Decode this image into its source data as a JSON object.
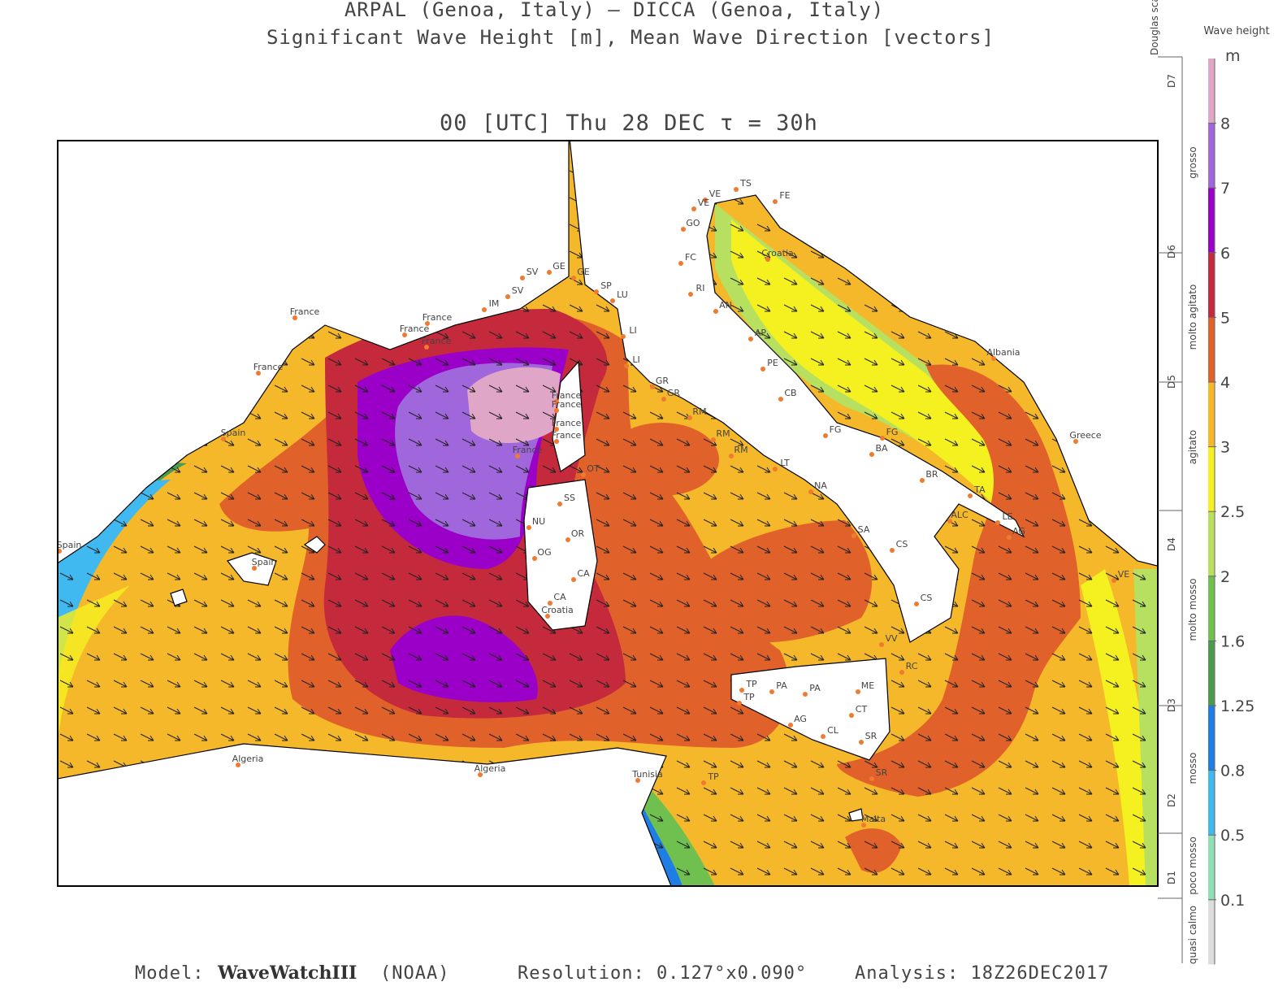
{
  "header": {
    "line1": "ARPAL (Genoa, Italy)  —  DICCA (Genoa, Italy)",
    "line2": "Significant Wave Height [m], Mean Wave Direction [vectors]",
    "time": "00 [UTC] Thu 28 DEC  τ = 30h"
  },
  "legend": {
    "wave_title": "Wave height",
    "unit": "m",
    "douglas_title": "Douglas scale",
    "levels": [
      0.1,
      0.5,
      0.8,
      1.25,
      1.6,
      2,
      2.5,
      3,
      4,
      5,
      6,
      7,
      8
    ],
    "colors": [
      "#dcdcdc",
      "#8fe0b4",
      "#40b8f0",
      "#1e7ee6",
      "#4a9a50",
      "#70c050",
      "#b8e060",
      "#f5f020",
      "#f5b82a",
      "#e0622a",
      "#c42a3c",
      "#9a00c8",
      "#a066dc",
      "#e0a6c8"
    ],
    "douglas": [
      "D1",
      "D2",
      "D3",
      "D4",
      "D5",
      "D6",
      "D7"
    ],
    "sea_states": [
      "quasi calmo",
      "poco mosso",
      "mosso",
      "molto mosso",
      "agitato",
      "molto agitato",
      "grosso"
    ]
  },
  "places": [
    "France",
    "France",
    "France",
    "France",
    "France",
    "IM",
    "SV",
    "SV",
    "GE",
    "GE",
    "SP",
    "LU",
    "LI",
    "LI",
    "GR",
    "GR",
    "RM",
    "RM",
    "RM",
    "LT",
    "NA",
    "SA",
    "CS",
    "CS",
    "VV",
    "RC",
    "ME",
    "CT",
    "SR",
    "SR",
    "Malta",
    "AG",
    "CL",
    "PA",
    "PA",
    "TP",
    "TP",
    "TP",
    "Tunisia",
    "Algeria",
    "Algeria",
    "Spain",
    "Spain",
    "Spain",
    "France",
    "France",
    "France",
    "France",
    "France",
    "OT",
    "SS",
    "NU",
    "OR",
    "OG",
    "CA",
    "CA",
    "Croatia",
    "Croatia",
    "Albania",
    "Greece",
    "VE",
    "VE",
    "VE",
    "GO",
    "TS",
    "FE",
    "FC",
    "RI",
    "AN",
    "AP",
    "PE",
    "CB",
    "FG",
    "FG",
    "BA",
    "BR",
    "TA",
    "ALC",
    "LE",
    "AG"
  ],
  "footer": {
    "model_label": "Model:",
    "model_name": "WaveWatchIII",
    "model_org": "(NOAA)",
    "resolution": "Resolution: 0.127°x0.090°",
    "analysis": "Analysis: 18Z26DEC2017"
  }
}
